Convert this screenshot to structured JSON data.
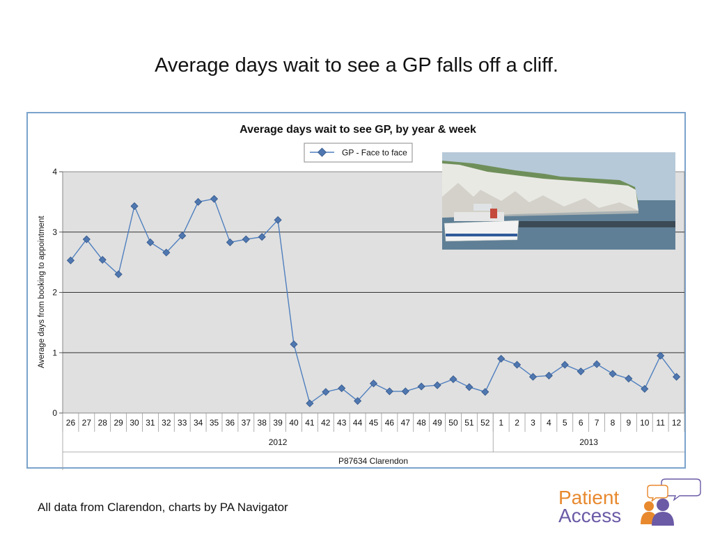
{
  "slide": {
    "title": "Average days wait to see a GP falls off a cliff.",
    "footer": "All data from Clarendon, charts by PA Navigator",
    "logo_line1": "Patient",
    "logo_line2": "Access",
    "logo_colors": {
      "orange": "#e8892e",
      "purple": "#6b5aa6"
    }
  },
  "chart_data": {
    "type": "line",
    "title": "Average days wait to see GP, by year & week",
    "ylabel": "Average days from booking to appointment",
    "xlabel": "P87634 Clarendon",
    "ylim": [
      0,
      4
    ],
    "yticks": [
      0,
      1,
      2,
      3,
      4
    ],
    "grid": true,
    "legend_position": "top-center",
    "marker": "diamond",
    "plot_background": "#e0e0e0",
    "series_color": "#4f7fbe",
    "marker_fill": "#4f77b0",
    "categories": [
      "26",
      "27",
      "28",
      "29",
      "30",
      "31",
      "32",
      "33",
      "34",
      "35",
      "36",
      "37",
      "38",
      "39",
      "40",
      "41",
      "42",
      "43",
      "44",
      "45",
      "46",
      "47",
      "48",
      "49",
      "50",
      "51",
      "52",
      "1",
      "2",
      "3",
      "4",
      "5",
      "6",
      "7",
      "8",
      "9",
      "10",
      "11",
      "12"
    ],
    "groups": [
      {
        "label": "2012",
        "count": 27
      },
      {
        "label": "2013",
        "count": 12
      }
    ],
    "series": [
      {
        "name": "GP - Face to face",
        "values": [
          2.53,
          2.88,
          2.54,
          2.3,
          3.43,
          2.83,
          2.66,
          2.94,
          3.5,
          3.55,
          2.83,
          2.88,
          2.92,
          3.2,
          1.14,
          0.16,
          0.35,
          0.41,
          0.2,
          0.49,
          0.36,
          0.36,
          0.44,
          0.46,
          0.56,
          0.43,
          0.35,
          0.9,
          0.8,
          0.6,
          0.62,
          0.8,
          0.69,
          0.81,
          0.65,
          0.57,
          0.4,
          0.95,
          0.6
        ]
      }
    ],
    "inset_image": "white-cliffs-of-dover-with-ferry"
  }
}
